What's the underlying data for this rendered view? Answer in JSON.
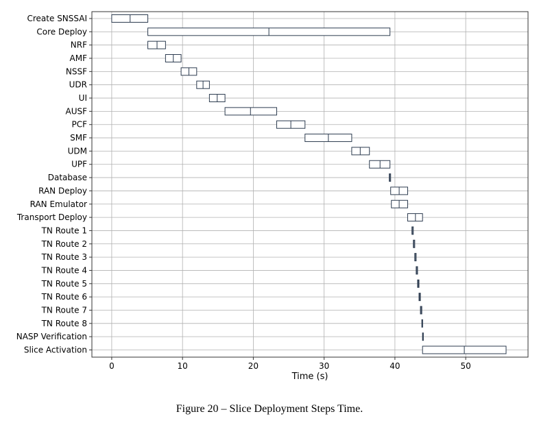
{
  "chart_data": {
    "type": "box",
    "orientation": "horizontal",
    "xlabel": "Time (s)",
    "xlim": [
      -2.8,
      58.8
    ],
    "xticks": [
      0,
      10,
      20,
      30,
      40,
      50
    ],
    "grid": true,
    "box_color": "#2b3a4e",
    "categories": [
      "Create SNSSAI",
      "Core Deploy",
      "NRF",
      "AMF",
      "NSSF",
      "UDR",
      "UI",
      "AUSF",
      "PCF",
      "SMF",
      "UDM",
      "UPF",
      "Database",
      "RAN Deploy",
      "RAN Emulator",
      "Transport Deploy",
      "TN Route 1",
      "TN Route 2",
      "TN Route 3",
      "TN Route 4",
      "TN Route 5",
      "TN Route 6",
      "TN Route 7",
      "TN Route 8",
      "NASP Verification",
      "Slice Activation"
    ],
    "boxes": [
      {
        "min": 0.0,
        "q1": 0.0,
        "median": 2.6,
        "q3": 5.1,
        "max": 5.1
      },
      {
        "min": 5.1,
        "q1": 5.1,
        "median": 22.2,
        "q3": 39.3,
        "max": 39.3
      },
      {
        "min": 5.1,
        "q1": 5.1,
        "median": 6.4,
        "q3": 7.6,
        "max": 7.6
      },
      {
        "min": 7.6,
        "q1": 7.6,
        "median": 8.7,
        "q3": 9.8,
        "max": 9.8
      },
      {
        "min": 9.8,
        "q1": 9.8,
        "median": 10.9,
        "q3": 12.0,
        "max": 12.0
      },
      {
        "min": 12.0,
        "q1": 12.0,
        "median": 12.9,
        "q3": 13.8,
        "max": 13.8
      },
      {
        "min": 13.8,
        "q1": 13.8,
        "median": 14.9,
        "q3": 16.0,
        "max": 16.0
      },
      {
        "min": 16.0,
        "q1": 16.0,
        "median": 19.6,
        "q3": 23.3,
        "max": 23.3
      },
      {
        "min": 23.3,
        "q1": 23.3,
        "median": 25.3,
        "q3": 27.3,
        "max": 27.3
      },
      {
        "min": 27.3,
        "q1": 27.3,
        "median": 30.6,
        "q3": 33.9,
        "max": 33.9
      },
      {
        "min": 33.9,
        "q1": 33.9,
        "median": 35.1,
        "q3": 36.4,
        "max": 36.4
      },
      {
        "min": 36.4,
        "q1": 36.4,
        "median": 37.9,
        "q3": 39.3,
        "max": 39.3
      },
      {
        "min": 39.2,
        "q1": 39.2,
        "median": 39.3,
        "q3": 39.4,
        "max": 39.4
      },
      {
        "min": 39.4,
        "q1": 39.4,
        "median": 40.6,
        "q3": 41.8,
        "max": 41.8
      },
      {
        "min": 39.5,
        "q1": 39.5,
        "median": 40.6,
        "q3": 41.8,
        "max": 41.8
      },
      {
        "min": 41.8,
        "q1": 41.8,
        "median": 42.9,
        "q3": 43.9,
        "max": 43.9
      },
      {
        "min": 42.4,
        "q1": 42.4,
        "median": 42.5,
        "q3": 42.6,
        "max": 42.6
      },
      {
        "min": 42.6,
        "q1": 42.6,
        "median": 42.7,
        "q3": 42.8,
        "max": 42.8
      },
      {
        "min": 42.8,
        "q1": 42.8,
        "median": 42.9,
        "q3": 43.0,
        "max": 43.0
      },
      {
        "min": 43.0,
        "q1": 43.0,
        "median": 43.1,
        "q3": 43.2,
        "max": 43.2
      },
      {
        "min": 43.2,
        "q1": 43.2,
        "median": 43.3,
        "q3": 43.4,
        "max": 43.4
      },
      {
        "min": 43.4,
        "q1": 43.4,
        "median": 43.5,
        "q3": 43.6,
        "max": 43.6
      },
      {
        "min": 43.6,
        "q1": 43.6,
        "median": 43.7,
        "q3": 43.8,
        "max": 43.8
      },
      {
        "min": 43.8,
        "q1": 43.8,
        "median": 43.85,
        "q3": 43.9,
        "max": 43.9
      },
      {
        "min": 43.9,
        "q1": 43.9,
        "median": 43.95,
        "q3": 44.0,
        "max": 44.0
      },
      {
        "min": 43.9,
        "q1": 43.9,
        "median": 49.8,
        "q3": 55.7,
        "max": 55.7
      }
    ]
  },
  "caption": "Figure 20 – Slice Deployment Steps Time."
}
